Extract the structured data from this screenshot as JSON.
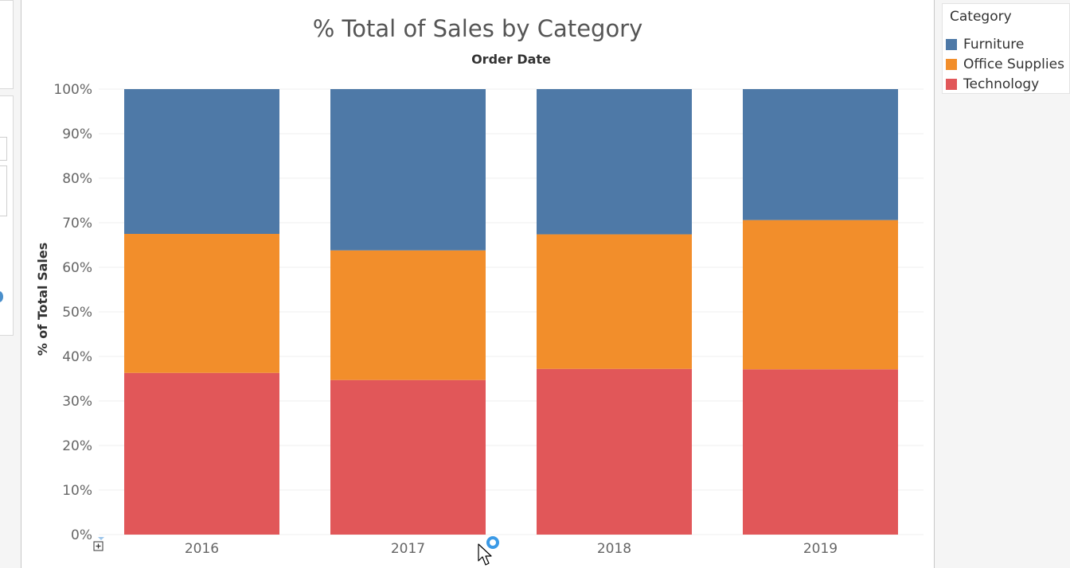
{
  "chart_data": {
    "type": "bar",
    "stacked": true,
    "title": "% Total of Sales by Category",
    "column_header": "Order Date",
    "ylabel": "% of Total Sales",
    "xlabel": "",
    "ylim": [
      0,
      100
    ],
    "yticks": [
      "0%",
      "10%",
      "20%",
      "30%",
      "40%",
      "50%",
      "60%",
      "70%",
      "80%",
      "90%",
      "100%"
    ],
    "categories": [
      "2016",
      "2017",
      "2018",
      "2019"
    ],
    "series": [
      {
        "name": "Technology",
        "color": "#e15759",
        "values": [
          36.3,
          34.7,
          37.2,
          37.1
        ]
      },
      {
        "name": "Office Supplies",
        "color": "#f28e2b",
        "values": [
          31.2,
          29.1,
          30.2,
          33.5
        ]
      },
      {
        "name": "Furniture",
        "color": "#4e79a7",
        "values": [
          32.5,
          36.2,
          32.6,
          29.4
        ]
      }
    ],
    "grid": true,
    "legend_position": "right"
  },
  "legend": {
    "title": "Category",
    "items": [
      {
        "label": "Furniture",
        "color": "#4e79a7"
      },
      {
        "label": "Office Supplies",
        "color": "#f28e2b"
      },
      {
        "label": "Technology",
        "color": "#e15759"
      }
    ]
  },
  "icons": {
    "cursor": "arrow-cursor-icon",
    "drag_handle": "drag-ring-icon",
    "add_corner": "plus-corner-icon"
  }
}
